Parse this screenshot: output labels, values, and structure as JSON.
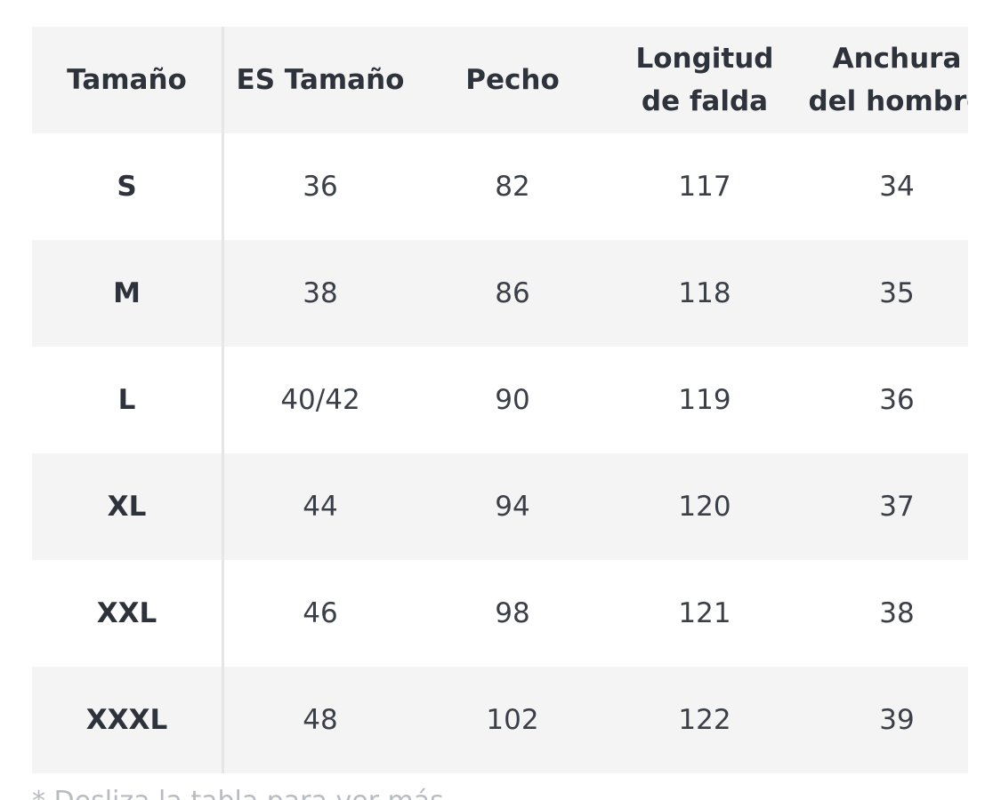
{
  "table": {
    "header": [
      "Tamaño",
      "ES Tamaño",
      "Pecho",
      "Longitud de falda",
      "Anchura del hombro"
    ],
    "rows": [
      [
        "S",
        36,
        82,
        117,
        34
      ],
      [
        "M",
        38,
        86,
        118,
        35
      ],
      [
        "L",
        "40/42",
        90,
        119,
        36
      ],
      [
        "XL",
        44,
        94,
        120,
        37
      ],
      [
        "XXL",
        46,
        98,
        121,
        38
      ],
      [
        "XXXL",
        48,
        102,
        122,
        39
      ]
    ]
  },
  "footnote": "* Desliza la tabla para ver más"
}
